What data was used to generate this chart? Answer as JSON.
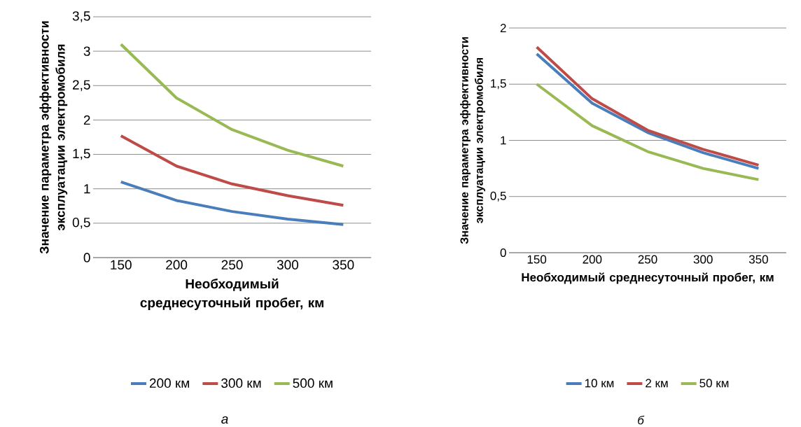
{
  "chart_data": [
    {
      "type": "line",
      "xlabel": "Необходимый среднесуточный пробег, км",
      "ylabel": "Значение параметра эффективности эксплуатации электромобиля",
      "categories": [
        "150",
        "200",
        "250",
        "300",
        "350"
      ],
      "series": [
        {
          "name": "200 км",
          "color": "#4a7ebb",
          "values": [
            1.1,
            0.83,
            0.67,
            0.56,
            0.48
          ]
        },
        {
          "name": "300 км",
          "color": "#be4b48",
          "values": [
            1.77,
            1.33,
            1.07,
            0.9,
            0.76
          ]
        },
        {
          "name": "500 км",
          "color": "#98b954",
          "values": [
            3.1,
            2.32,
            1.86,
            1.56,
            1.33
          ]
        }
      ],
      "ylim": [
        0,
        3.5
      ],
      "yticks": [
        0,
        {
          "value": 0.5,
          "label": "0,5"
        },
        1,
        {
          "value": 1.5,
          "label": "1,5"
        },
        2,
        {
          "value": 2.5,
          "label": "2,5"
        },
        3,
        {
          "value": 3.5,
          "label": "3,5"
        }
      ],
      "grid": "y",
      "legend": "bottom",
      "annotations": [
        "а"
      ]
    },
    {
      "type": "line",
      "xlabel": "Необходимый среднесуточный пробег, км",
      "ylabel": "Значение параметра эффективности эксплуатации электромобиля",
      "categories": [
        "150",
        "200",
        "250",
        "300",
        "350"
      ],
      "series": [
        {
          "name": "10 км",
          "color": "#4a7ebb",
          "values": [
            1.77,
            1.33,
            1.07,
            0.89,
            0.75
          ]
        },
        {
          "name": "2 км",
          "color": "#be4b48",
          "values": [
            1.83,
            1.37,
            1.09,
            0.92,
            0.78
          ]
        },
        {
          "name": "50 км",
          "color": "#98b954",
          "values": [
            1.5,
            1.13,
            0.9,
            0.75,
            0.65
          ]
        }
      ],
      "ylim": [
        0,
        2
      ],
      "yticks": [
        0,
        {
          "value": 0.5,
          "label": "0,5"
        },
        1,
        {
          "value": 1.5,
          "label": "1,5"
        },
        2
      ],
      "grid": "y",
      "legend": "bottom",
      "annotations": [
        "б"
      ]
    }
  ]
}
